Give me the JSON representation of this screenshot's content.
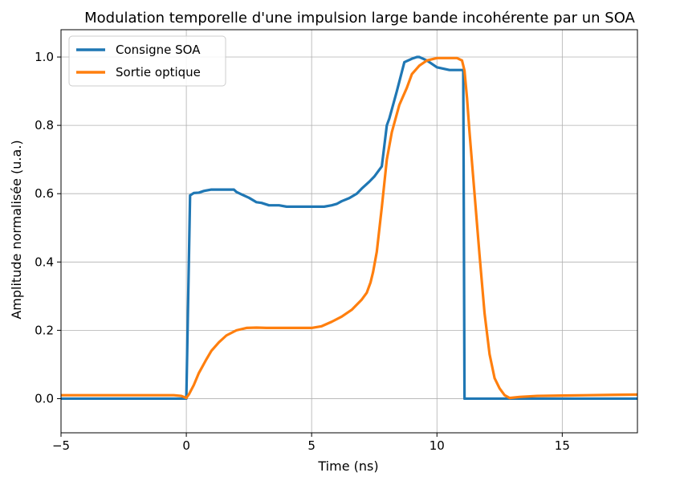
{
  "chart_data": {
    "type": "line",
    "title": "Modulation temporelle d'une impulsion large bande incohérente par un SOA",
    "xlabel": "Time (ns)",
    "ylabel": "Amplitude normalisée (u.a.)",
    "xlim": [
      -5,
      18
    ],
    "ylim": [
      -0.1,
      1.08
    ],
    "xticks": [
      -5,
      0,
      5,
      10,
      15
    ],
    "xtick_labels": [
      "−5",
      "0",
      "5",
      "10",
      "15"
    ],
    "yticks": [
      0.0,
      0.2,
      0.4,
      0.6,
      0.8,
      1.0
    ],
    "ytick_labels": [
      "0.0",
      "0.2",
      "0.4",
      "0.6",
      "0.8",
      "1.0"
    ],
    "grid": true,
    "legend_position": "top-left",
    "series": [
      {
        "name": "Consigne SOA",
        "color": "#1f77b4",
        "x": [
          -5,
          0.0,
          0.15,
          0.3,
          0.5,
          0.7,
          1.0,
          1.5,
          1.9,
          2.0,
          2.2,
          2.5,
          2.8,
          3.0,
          3.3,
          3.7,
          4.0,
          4.5,
          5.0,
          5.5,
          5.8,
          6.0,
          6.2,
          6.5,
          6.8,
          7.0,
          7.3,
          7.5,
          7.6,
          7.8,
          8.0,
          8.1,
          8.4,
          8.7,
          9.0,
          9.2,
          9.3,
          9.6,
          10.0,
          10.5,
          10.9,
          10.95,
          11.05,
          11.1,
          12.0,
          15.0,
          18.0
        ],
        "y": [
          0.0,
          0.0,
          0.595,
          0.602,
          0.603,
          0.608,
          0.612,
          0.612,
          0.612,
          0.605,
          0.598,
          0.588,
          0.575,
          0.573,
          0.566,
          0.566,
          0.562,
          0.562,
          0.562,
          0.562,
          0.566,
          0.57,
          0.578,
          0.587,
          0.6,
          0.615,
          0.635,
          0.65,
          0.66,
          0.68,
          0.8,
          0.82,
          0.9,
          0.985,
          0.995,
          1.0,
          1.0,
          0.99,
          0.97,
          0.962,
          0.962,
          0.962,
          0.962,
          0.0,
          0.0,
          0.0,
          0.0
        ]
      },
      {
        "name": "Sortie optique",
        "color": "#ff7f0e",
        "x": [
          -5,
          -2,
          -0.5,
          -0.2,
          0.0,
          0.1,
          0.3,
          0.5,
          0.8,
          1.0,
          1.3,
          1.6,
          2.0,
          2.4,
          2.8,
          3.2,
          4.0,
          5.0,
          5.4,
          5.8,
          6.2,
          6.6,
          7.0,
          7.2,
          7.35,
          7.45,
          7.6,
          7.8,
          8.0,
          8.2,
          8.5,
          8.8,
          9.0,
          9.3,
          9.6,
          10.0,
          10.4,
          10.8,
          11.0,
          11.1,
          11.2,
          11.3,
          11.5,
          11.7,
          11.9,
          12.1,
          12.3,
          12.5,
          12.7,
          12.9,
          13.3,
          14.0,
          15.0,
          16.0,
          17.0,
          18.0
        ],
        "y": [
          0.01,
          0.01,
          0.01,
          0.008,
          0.002,
          0.012,
          0.04,
          0.075,
          0.115,
          0.14,
          0.165,
          0.185,
          0.2,
          0.207,
          0.208,
          0.207,
          0.207,
          0.207,
          0.212,
          0.225,
          0.24,
          0.26,
          0.29,
          0.31,
          0.34,
          0.37,
          0.43,
          0.56,
          0.7,
          0.78,
          0.86,
          0.91,
          0.95,
          0.975,
          0.99,
          0.997,
          0.997,
          0.997,
          0.99,
          0.96,
          0.88,
          0.78,
          0.6,
          0.42,
          0.25,
          0.13,
          0.06,
          0.03,
          0.01,
          0.002,
          0.005,
          0.008,
          0.009,
          0.01,
          0.011,
          0.012
        ]
      }
    ]
  }
}
